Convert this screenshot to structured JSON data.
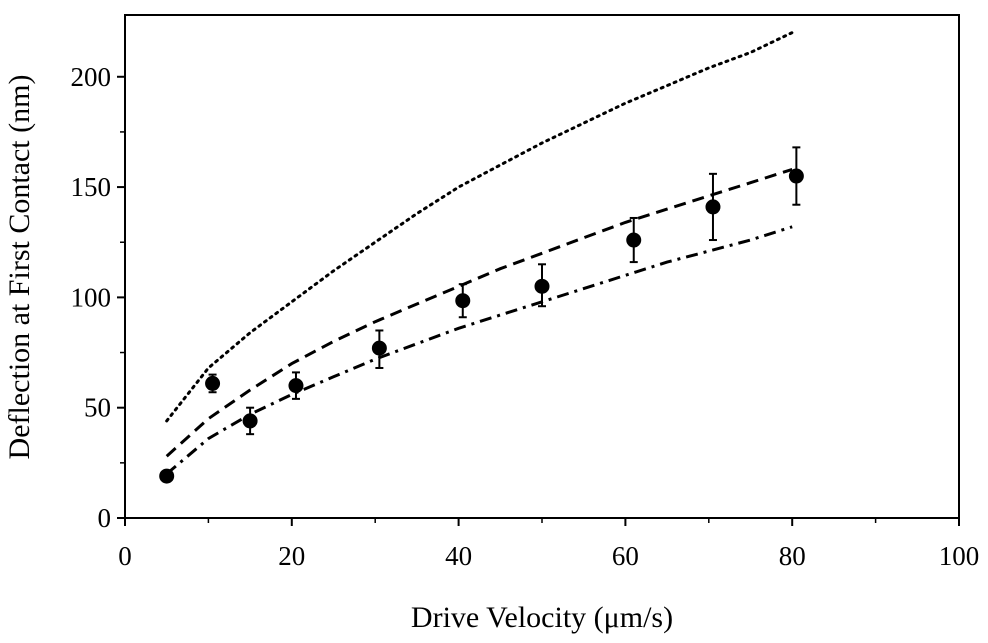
{
  "chart_data": {
    "type": "scatter",
    "title": "",
    "xlabel": "Drive Velocity (μm/s)",
    "ylabel": "Deflection at First Contact (nm)",
    "xlim": [
      0,
      100
    ],
    "ylim": [
      0,
      228
    ],
    "x_ticks": [
      0,
      20,
      40,
      60,
      80,
      100
    ],
    "x_tick_labels": [
      "0",
      "20",
      "40",
      "60",
      "80",
      "100"
    ],
    "y_ticks": [
      0,
      50,
      100,
      150,
      200
    ],
    "y_tick_labels": [
      "0",
      "50",
      "100",
      "150",
      "200"
    ],
    "x_minor_ticks": [
      10,
      30,
      50,
      70,
      90
    ],
    "y_minor_ticks": [
      25,
      75,
      125,
      175
    ],
    "grid": false,
    "series": [
      {
        "name": "measured deflection",
        "kind": "points",
        "points": [
          {
            "x": 5,
            "y": 19,
            "y_low": 19,
            "y_high": 19
          },
          {
            "x": 10.5,
            "y": 61,
            "y_low": 57,
            "y_high": 65
          },
          {
            "x": 15,
            "y": 44,
            "y_low": 38,
            "y_high": 50
          },
          {
            "x": 20.5,
            "y": 60,
            "y_low": 54,
            "y_high": 66
          },
          {
            "x": 30.5,
            "y": 77,
            "y_low": 68,
            "y_high": 85
          },
          {
            "x": 40.5,
            "y": 98.5,
            "y_low": 91,
            "y_high": 106
          },
          {
            "x": 50,
            "y": 105,
            "y_low": 96,
            "y_high": 115
          },
          {
            "x": 61,
            "y": 126,
            "y_low": 116,
            "y_high": 136
          },
          {
            "x": 70.5,
            "y": 141,
            "y_low": 126,
            "y_high": 156
          },
          {
            "x": 80.5,
            "y": 155,
            "y_low": 142,
            "y_high": 168
          }
        ]
      },
      {
        "name": "model curve (dotted)",
        "kind": "line",
        "style": "dotted",
        "x": [
          5,
          10,
          15,
          20,
          25,
          30,
          35,
          40,
          45,
          50,
          55,
          60,
          65,
          70,
          75,
          80
        ],
        "y": [
          44,
          68,
          84,
          98,
          112,
          125,
          138,
          150,
          160,
          170,
          179,
          188,
          196,
          204,
          211,
          220
        ]
      },
      {
        "name": "model curve (dashed)",
        "kind": "line",
        "style": "dashed",
        "x": [
          5,
          10,
          15,
          20,
          25,
          30,
          35,
          40,
          45,
          50,
          55,
          60,
          65,
          70,
          75,
          80
        ],
        "y": [
          28,
          45,
          58,
          70,
          80,
          89,
          97,
          105,
          113,
          120,
          127,
          134,
          140,
          146,
          152,
          158
        ]
      },
      {
        "name": "model curve (dash-dot)",
        "kind": "line",
        "style": "dashdot",
        "x": [
          5,
          10,
          15,
          20,
          25,
          30,
          35,
          40,
          45,
          50,
          55,
          60,
          65,
          70,
          75,
          80
        ],
        "y": [
          20,
          36,
          47,
          56,
          64,
          72,
          79,
          86,
          92,
          98,
          104,
          110,
          116,
          121,
          126,
          132
        ]
      }
    ]
  }
}
